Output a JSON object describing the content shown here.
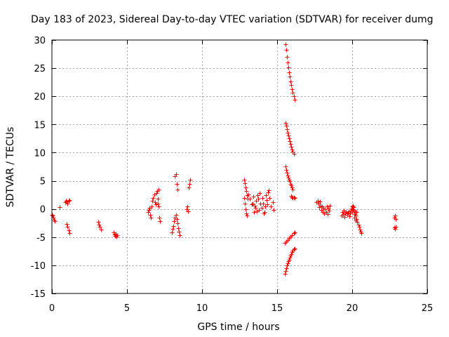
{
  "chart_data": {
    "type": "scatter",
    "title": "Day 183 of 2023, Sidereal Day-to-day VTEC variation (SDTVAR) for receiver dumg",
    "xlabel": "GPS time / hours",
    "ylabel": "SDTVAR / TECUs",
    "xlim": [
      0,
      25
    ],
    "ylim": [
      -15,
      30
    ],
    "xticks": [
      0,
      5,
      10,
      15,
      20,
      25
    ],
    "yticks": [
      -15,
      -10,
      -5,
      0,
      5,
      10,
      15,
      20,
      25,
      30
    ],
    "grid": true,
    "marker": "+",
    "color": "#ff0000",
    "series": [
      {
        "name": "dumg",
        "points": [
          [
            0.0,
            -1.0
          ],
          [
            0.05,
            -1.2
          ],
          [
            0.1,
            -1.5
          ],
          [
            0.15,
            -1.9
          ],
          [
            0.2,
            -2.2
          ],
          [
            0.5,
            0.3
          ],
          [
            0.9,
            1.2
          ],
          [
            0.95,
            1.5
          ],
          [
            1.0,
            1.3
          ],
          [
            1.05,
            1.0
          ],
          [
            1.1,
            1.4
          ],
          [
            1.15,
            1.6
          ],
          [
            1.0,
            -2.6
          ],
          [
            1.05,
            -3.2
          ],
          [
            1.1,
            -3.8
          ],
          [
            1.15,
            -4.3
          ],
          [
            3.1,
            -2.3
          ],
          [
            3.15,
            -2.8
          ],
          [
            3.2,
            -3.2
          ],
          [
            3.25,
            -3.6
          ],
          [
            4.1,
            -4.2
          ],
          [
            4.15,
            -4.5
          ],
          [
            4.2,
            -4.8
          ],
          [
            4.25,
            -4.4
          ],
          [
            4.3,
            -4.9
          ],
          [
            4.35,
            -4.6
          ],
          [
            6.4,
            -0.5
          ],
          [
            6.45,
            -0.2
          ],
          [
            6.5,
            0.2
          ],
          [
            6.55,
            -1.0
          ],
          [
            6.6,
            -1.5
          ],
          [
            6.65,
            0.5
          ],
          [
            6.7,
            1.5
          ],
          [
            6.75,
            2.0
          ],
          [
            6.8,
            2.6
          ],
          [
            6.85,
            1.2
          ],
          [
            6.9,
            0.8
          ],
          [
            6.95,
            2.8
          ],
          [
            7.0,
            3.2
          ],
          [
            7.05,
            0.9
          ],
          [
            7.1,
            0.5
          ],
          [
            7.15,
            -1.5
          ],
          [
            7.2,
            -2.2
          ],
          [
            7.05,
            1.8
          ],
          [
            7.1,
            3.5
          ],
          [
            8.0,
            -4.2
          ],
          [
            8.05,
            -3.5
          ],
          [
            8.1,
            -3.0
          ],
          [
            8.15,
            -2.2
          ],
          [
            8.2,
            -1.5
          ],
          [
            8.25,
            -1.0
          ],
          [
            8.3,
            -1.8
          ],
          [
            8.35,
            -2.5
          ],
          [
            8.4,
            -3.4
          ],
          [
            8.45,
            -4.0
          ],
          [
            8.5,
            -4.6
          ],
          [
            8.2,
            5.8
          ],
          [
            8.25,
            6.2
          ],
          [
            8.3,
            4.5
          ],
          [
            8.35,
            3.5
          ],
          [
            8.95,
            0.0
          ],
          [
            9.0,
            0.4
          ],
          [
            9.05,
            -0.4
          ],
          [
            9.1,
            3.8
          ],
          [
            9.15,
            4.5
          ],
          [
            9.2,
            5.2
          ],
          [
            12.8,
            5.2
          ],
          [
            12.85,
            4.6
          ],
          [
            12.9,
            3.8
          ],
          [
            12.95,
            3.2
          ],
          [
            13.0,
            2.5
          ],
          [
            13.05,
            1.8
          ],
          [
            12.8,
            2.0
          ],
          [
            12.85,
            1.0
          ],
          [
            12.9,
            0.0
          ],
          [
            12.95,
            -0.8
          ],
          [
            13.0,
            -1.2
          ],
          [
            13.1,
            2.6
          ],
          [
            13.2,
            1.8
          ],
          [
            13.3,
            0.8
          ],
          [
            13.4,
            2.2
          ],
          [
            13.5,
            0.6
          ],
          [
            13.6,
            1.4
          ],
          [
            13.7,
            2.4
          ],
          [
            13.8,
            -0.2
          ],
          [
            13.9,
            0.9
          ],
          [
            14.0,
            1.9
          ],
          [
            14.1,
            -0.8
          ],
          [
            14.2,
            0.4
          ],
          [
            14.3,
            1.6
          ],
          [
            14.4,
            2.9
          ],
          [
            14.5,
            2.0
          ],
          [
            14.6,
            0.5
          ],
          [
            14.7,
            1.2
          ],
          [
            14.75,
            -0.2
          ],
          [
            13.35,
            1.0
          ],
          [
            13.45,
            -0.5
          ],
          [
            13.55,
            0.2
          ],
          [
            13.65,
            -0.4
          ],
          [
            13.75,
            1.8
          ],
          [
            13.85,
            2.8
          ],
          [
            13.95,
            0.2
          ],
          [
            14.05,
            1.0
          ],
          [
            14.15,
            -0.5
          ],
          [
            14.25,
            2.5
          ],
          [
            14.35,
            0.8
          ],
          [
            14.45,
            3.3
          ],
          [
            15.55,
            29.3
          ],
          [
            15.6,
            28.2
          ],
          [
            15.65,
            27.0
          ],
          [
            15.7,
            26.0
          ],
          [
            15.75,
            25.2
          ],
          [
            15.8,
            24.3
          ],
          [
            15.85,
            23.5
          ],
          [
            15.9,
            22.7
          ],
          [
            15.95,
            22.0
          ],
          [
            16.0,
            21.3
          ],
          [
            16.05,
            20.6
          ],
          [
            16.1,
            20.0
          ],
          [
            16.15,
            19.4
          ],
          [
            15.55,
            15.3
          ],
          [
            15.6,
            14.8
          ],
          [
            15.65,
            14.2
          ],
          [
            15.7,
            13.6
          ],
          [
            15.75,
            13.0
          ],
          [
            15.8,
            12.5
          ],
          [
            15.85,
            12.0
          ],
          [
            15.9,
            11.5
          ],
          [
            15.95,
            11.0
          ],
          [
            16.0,
            10.6
          ],
          [
            16.05,
            10.2
          ],
          [
            16.1,
            9.8
          ],
          [
            15.55,
            7.6
          ],
          [
            15.6,
            7.0
          ],
          [
            15.65,
            6.4
          ],
          [
            15.7,
            6.0
          ],
          [
            15.75,
            5.6
          ],
          [
            15.8,
            5.2
          ],
          [
            15.85,
            4.9
          ],
          [
            15.9,
            4.5
          ],
          [
            15.95,
            4.2
          ],
          [
            16.0,
            3.8
          ],
          [
            16.05,
            3.5
          ],
          [
            15.95,
            2.3
          ],
          [
            16.0,
            2.1
          ],
          [
            16.05,
            2.0
          ],
          [
            16.1,
            2.1
          ],
          [
            16.15,
            2.0
          ],
          [
            15.5,
            -6.0
          ],
          [
            15.6,
            -5.8
          ],
          [
            15.7,
            -5.5
          ],
          [
            15.8,
            -5.2
          ],
          [
            15.9,
            -4.9
          ],
          [
            16.0,
            -4.6
          ],
          [
            16.1,
            -4.3
          ],
          [
            16.15,
            -4.1
          ],
          [
            15.5,
            -11.5
          ],
          [
            15.55,
            -11.0
          ],
          [
            15.6,
            -10.5
          ],
          [
            15.65,
            -10.0
          ],
          [
            15.7,
            -9.7
          ],
          [
            15.75,
            -9.3
          ],
          [
            15.8,
            -9.0
          ],
          [
            15.85,
            -8.6
          ],
          [
            15.9,
            -8.3
          ],
          [
            15.95,
            -8.0
          ],
          [
            16.0,
            -7.7
          ],
          [
            16.05,
            -7.4
          ],
          [
            16.1,
            -7.2
          ],
          [
            16.15,
            -7.0
          ],
          [
            17.6,
            1.2
          ],
          [
            17.7,
            1.5
          ],
          [
            17.75,
            0.9
          ],
          [
            17.8,
            0.3
          ],
          [
            17.85,
            1.3
          ],
          [
            17.9,
            0.6
          ],
          [
            17.95,
            -0.2
          ],
          [
            18.0,
            0.4
          ],
          [
            18.05,
            -0.5
          ],
          [
            18.1,
            0.2
          ],
          [
            18.15,
            -0.8
          ],
          [
            18.2,
            0.0
          ],
          [
            18.25,
            -0.6
          ],
          [
            18.3,
            0.4
          ],
          [
            18.35,
            -0.9
          ],
          [
            18.4,
            0.1
          ],
          [
            18.45,
            -0.3
          ],
          [
            18.5,
            0.6
          ],
          [
            19.3,
            -1.2
          ],
          [
            19.35,
            -0.6
          ],
          [
            19.4,
            -0.9
          ],
          [
            19.45,
            -0.3
          ],
          [
            19.5,
            -1.4
          ],
          [
            19.55,
            -0.8
          ],
          [
            19.6,
            -0.5
          ],
          [
            19.65,
            -1.0
          ],
          [
            19.7,
            -0.7
          ],
          [
            19.75,
            -0.4
          ],
          [
            19.8,
            -1.3
          ],
          [
            19.85,
            -0.8
          ],
          [
            19.9,
            -0.3
          ],
          [
            19.95,
            0.1
          ],
          [
            20.0,
            -0.5
          ],
          [
            20.05,
            0.6
          ],
          [
            20.1,
            -0.2
          ],
          [
            20.15,
            -0.9
          ],
          [
            20.2,
            -0.4
          ],
          [
            20.25,
            -1.2
          ],
          [
            20.3,
            -1.8
          ],
          [
            20.35,
            -2.3
          ],
          [
            20.4,
            -2.8
          ],
          [
            20.45,
            -3.2
          ],
          [
            20.5,
            -3.6
          ],
          [
            20.55,
            -4.0
          ],
          [
            20.6,
            -4.3
          ],
          [
            20.0,
            0.5
          ],
          [
            20.05,
            -0.1
          ],
          [
            20.1,
            0.3
          ],
          [
            20.15,
            -1.5
          ],
          [
            20.2,
            -0.9
          ],
          [
            20.25,
            -2.0
          ],
          [
            20.3,
            -0.6
          ],
          [
            22.8,
            -1.5
          ],
          [
            22.85,
            -1.2
          ],
          [
            22.9,
            -1.8
          ],
          [
            22.8,
            -3.3
          ],
          [
            22.85,
            -3.5
          ],
          [
            22.9,
            -3.2
          ]
        ]
      }
    ]
  }
}
